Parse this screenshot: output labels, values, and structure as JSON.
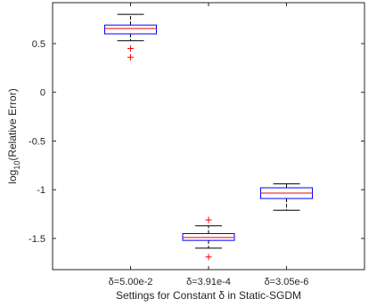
{
  "chart_data": {
    "type": "box",
    "xlabel": "Settings for Constant δ in Static-SGDM",
    "ylabel": "log10(Relative Error)",
    "ylabel_main": "log",
    "ylabel_sub": "10",
    "ylabel_rest": "(Relative Error)",
    "ylim": [
      -1.82,
      0.92
    ],
    "yticks": [
      -1.5,
      -1,
      -0.5,
      0,
      0.5
    ],
    "ytick_labels": [
      "-1.5",
      "-1",
      "-0.5",
      "0",
      "0.5"
    ],
    "categories": [
      "δ=5.00e-2",
      "δ=3.91e-4",
      "δ=3.05e-6"
    ],
    "boxes": [
      {
        "whisker_low": 0.53,
        "q1": 0.6,
        "median": 0.655,
        "q3": 0.69,
        "whisker_high": 0.8,
        "outliers": [
          0.45,
          0.36
        ]
      },
      {
        "whisker_low": -1.6,
        "q1": -1.52,
        "median": -1.49,
        "q3": -1.45,
        "whisker_high": -1.37,
        "outliers": [
          -1.31,
          -1.69
        ]
      },
      {
        "whisker_low": -1.21,
        "q1": -1.09,
        "median": -1.035,
        "q3": -0.98,
        "whisker_high": -0.94,
        "outliers": []
      }
    ],
    "colors": {
      "box": "#0000ff",
      "median": "#ff0000",
      "whisker": "#000000",
      "outlier": "#ff0000",
      "axes": "#262626"
    },
    "grid": false,
    "legend": "none"
  }
}
